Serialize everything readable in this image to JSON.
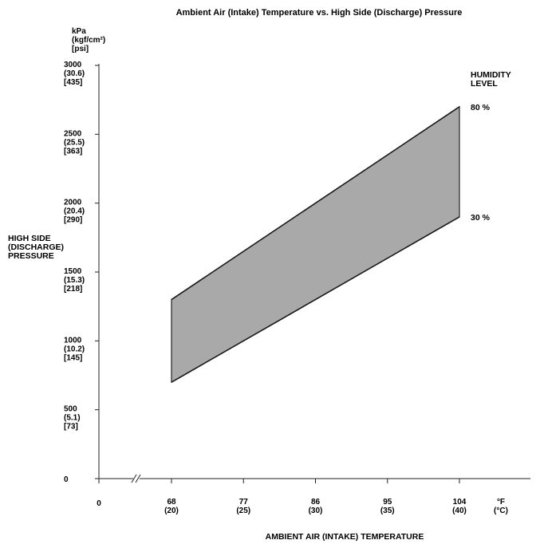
{
  "chart_data": {
    "type": "area",
    "title": "Ambient Air (Intake) Temperature vs. High Side (Discharge) Pressure",
    "y_units": [
      "kPa",
      "(kgf/cm²)",
      "[psi]"
    ],
    "ylabel": [
      "HIGH SIDE",
      "(DISCHARGE)",
      "PRESSURE"
    ],
    "xlabel": "AMBIENT AIR (INTAKE) TEMPERATURE",
    "x_units": [
      "°F",
      "(°C)"
    ],
    "y_ticks": [
      {
        "value": 0,
        "lines": [
          "0"
        ]
      },
      {
        "value": 500,
        "lines": [
          "500",
          "(5.1)",
          "[73]"
        ]
      },
      {
        "value": 1000,
        "lines": [
          "1000",
          "(10.2)",
          "[145]"
        ]
      },
      {
        "value": 1500,
        "lines": [
          "1500",
          "(15.3)",
          "[218]"
        ]
      },
      {
        "value": 2000,
        "lines": [
          "2000",
          "(20.4)",
          "[290]"
        ]
      },
      {
        "value": 2500,
        "lines": [
          "2500",
          "(25.5)",
          "[363]"
        ]
      },
      {
        "value": 3000,
        "lines": [
          "3000",
          "(30.6)",
          "[435]"
        ]
      }
    ],
    "x_ticks": [
      {
        "value": 68,
        "lines": [
          "68",
          "(20)"
        ]
      },
      {
        "value": 77,
        "lines": [
          "77",
          "(25)"
        ]
      },
      {
        "value": 86,
        "lines": [
          "86",
          "(30)"
        ]
      },
      {
        "value": 95,
        "lines": [
          "95",
          "(35)"
        ]
      },
      {
        "value": 104,
        "lines": [
          "104",
          "(40)"
        ]
      }
    ],
    "x_origin_label": "0",
    "ylim": [
      0,
      3000
    ],
    "xlim": [
      59,
      110
    ],
    "legend_title": [
      "HUMIDITY",
      "LEVEL"
    ],
    "series": [
      {
        "name": "80 %",
        "x": [
          68,
          104
        ],
        "y": [
          1300,
          2700
        ]
      },
      {
        "name": "30 %",
        "x": [
          68,
          104
        ],
        "y": [
          700,
          1900
        ]
      }
    ],
    "grid": false
  }
}
